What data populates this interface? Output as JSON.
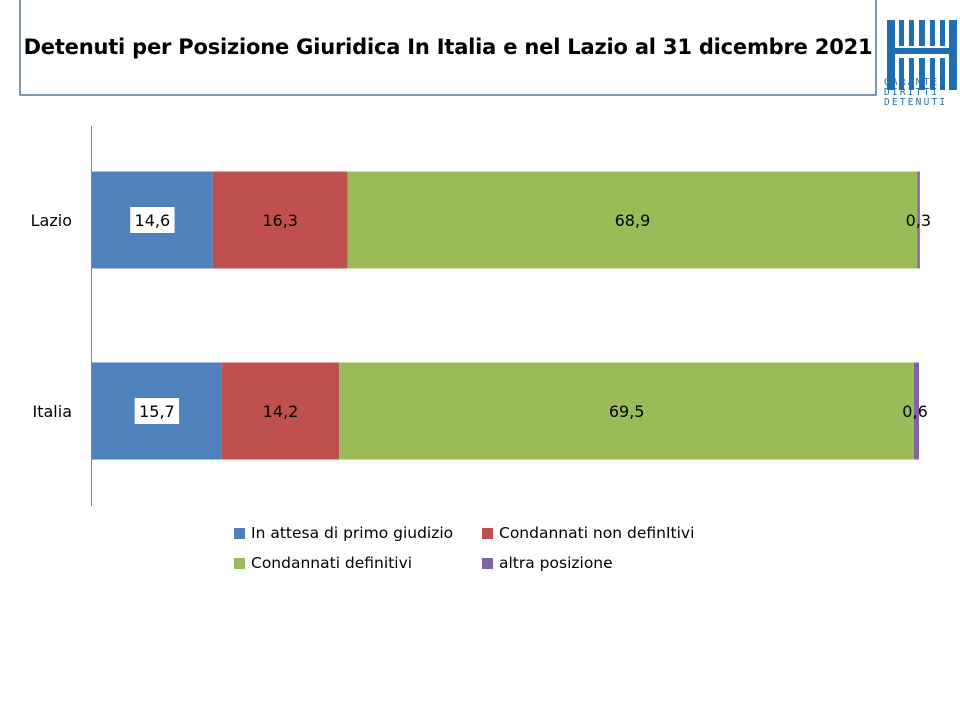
{
  "chart_data": {
    "type": "bar",
    "orientation": "horizontal",
    "stacked": true,
    "title": "Detenuti per Posizione Giuridica  In Italia e nel Lazio al 31 dicembre 2021",
    "categories": [
      "Lazio",
      "Italia"
    ],
    "series": [
      {
        "name": "In attesa di primo giudizio",
        "color": "#4f81bd",
        "values": [
          14.6,
          15.7
        ],
        "labels": [
          "14,6",
          "15,7"
        ]
      },
      {
        "name": "Condannati non definItivi",
        "color": "#c0504d",
        "values": [
          16.3,
          14.2
        ],
        "labels": [
          "16,3",
          "14,2"
        ]
      },
      {
        "name": "Condannati definitivi",
        "color": "#9bbb59",
        "values": [
          68.9,
          69.5
        ],
        "labels": [
          "68,9",
          "69,5"
        ]
      },
      {
        "name": "altra posizione",
        "color": "#8064a2",
        "values": [
          0.3,
          0.6
        ],
        "labels": [
          "0,3",
          "0,6"
        ]
      }
    ],
    "xlim": [
      0,
      100
    ],
    "grid": false,
    "legend_position": "bottom"
  },
  "logo": {
    "lines": [
      "GARANTE",
      "DIRITTI",
      "DETENUTI"
    ],
    "color": "#1f6fb0",
    "icon": "garante-logo-icon"
  }
}
